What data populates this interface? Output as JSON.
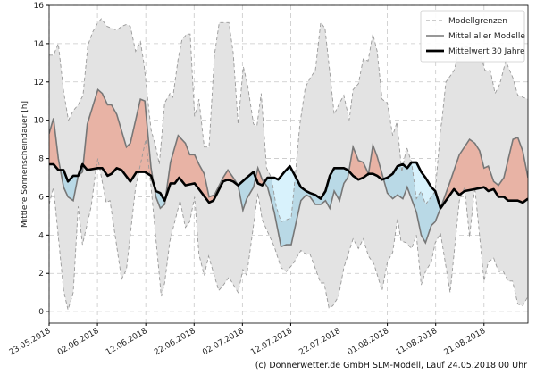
{
  "chart_data": {
    "type": "area",
    "title": "",
    "xlabel": "",
    "ylabel": "Mittlere Sonnenscheindauer [h]",
    "x_unit": "days since 23.05.2018",
    "xlim": [
      0,
      99.1
    ],
    "ylim": [
      -0.6,
      16
    ],
    "yticks": [
      0,
      2,
      4,
      6,
      8,
      10,
      12,
      14,
      16
    ],
    "xticks": [
      {
        "day": 0,
        "label": "23.05.2018"
      },
      {
        "day": 10,
        "label": "02.06.2018"
      },
      {
        "day": 20,
        "label": "12.06.2018"
      },
      {
        "day": 30,
        "label": "22.06.2018"
      },
      {
        "day": 40,
        "label": "02.07.2018"
      },
      {
        "day": 50,
        "label": "12.07.2018"
      },
      {
        "day": 60,
        "label": "22.07.2018"
      },
      {
        "day": 70,
        "label": "01.08.2018"
      },
      {
        "day": 80,
        "label": "11.08.2018"
      },
      {
        "day": 90,
        "label": "21.08.2018"
      }
    ],
    "grid": true,
    "legend_position": "top-right",
    "legend": [
      "Modellgrenzen",
      "Mittel aller Modelle",
      "Mittelwert 30 Jahre"
    ],
    "series": {
      "upper": [
        [
          0,
          13.4
        ],
        [
          0.9,
          13.4
        ],
        [
          1.9,
          14.0
        ],
        [
          3,
          11.5
        ],
        [
          4,
          10.0
        ],
        [
          5,
          10.5
        ],
        [
          6,
          10.8
        ],
        [
          7,
          11.3
        ],
        [
          8,
          13.9
        ],
        [
          9,
          14.6
        ],
        [
          10.1,
          15.1
        ],
        [
          10.8,
          15.3
        ],
        [
          12,
          14.9
        ],
        [
          13,
          14.8
        ],
        [
          14,
          14.7
        ],
        [
          15,
          14.9
        ],
        [
          16,
          15.0
        ],
        [
          16.8,
          14.9
        ],
        [
          17.9,
          13.6
        ],
        [
          18.9,
          14.1
        ],
        [
          19.6,
          13.0
        ],
        [
          21.1,
          9.5
        ],
        [
          22.1,
          8.6
        ],
        [
          22.8,
          7.7
        ],
        [
          23.9,
          10.9
        ],
        [
          25,
          11.4
        ],
        [
          25.6,
          11.2
        ],
        [
          26.7,
          13.2
        ],
        [
          27.5,
          14.2
        ],
        [
          28.5,
          14.5
        ],
        [
          29.2,
          14.5
        ],
        [
          30.1,
          10.2
        ],
        [
          31,
          11.1
        ],
        [
          32.1,
          8.6
        ],
        [
          33.1,
          8.6
        ],
        [
          34.2,
          13.4
        ],
        [
          35.2,
          15.1
        ],
        [
          36.3,
          15.1
        ],
        [
          37.2,
          15.1
        ],
        [
          38.1,
          13.5
        ],
        [
          39.1,
          9.8
        ],
        [
          40.2,
          12.8
        ],
        [
          41.1,
          11.8
        ],
        [
          42.3,
          9.8
        ],
        [
          43.0,
          9.7
        ],
        [
          43.9,
          11.4
        ],
        [
          45.0,
          7.5
        ],
        [
          46.0,
          7.0
        ],
        [
          47.0,
          5.5
        ],
        [
          48.0,
          4.7
        ],
        [
          49.1,
          4.8
        ],
        [
          50.1,
          4.9
        ],
        [
          50.9,
          7.0
        ],
        [
          51.9,
          9.8
        ],
        [
          53.0,
          11.7
        ],
        [
          54,
          12.2
        ],
        [
          55.1,
          12.6
        ],
        [
          56.2,
          15.1
        ],
        [
          57.1,
          14.8
        ],
        [
          58.1,
          12.5
        ],
        [
          59.0,
          10.3
        ],
        [
          60.1,
          10.9
        ],
        [
          61.0,
          11.3
        ],
        [
          62.1,
          10.0
        ],
        [
          62.9,
          11.6
        ],
        [
          64.0,
          11.9
        ],
        [
          65.0,
          13.2
        ],
        [
          66.0,
          13.1
        ],
        [
          67.0,
          14.5
        ],
        [
          67.9,
          13.6
        ],
        [
          68.9,
          11.1
        ],
        [
          70.0,
          10.9
        ],
        [
          71.1,
          9.2
        ],
        [
          72.0,
          9.9
        ],
        [
          73.0,
          7.3
        ],
        [
          74.0,
          8.6
        ],
        [
          75.0,
          7.8
        ],
        [
          76.0,
          5.9
        ],
        [
          77.0,
          6.3
        ],
        [
          77.9,
          5.6
        ],
        [
          79.1,
          6.0
        ],
        [
          79.9,
          6.3
        ],
        [
          81.0,
          9.5
        ],
        [
          81.3,
          10.0
        ],
        [
          82.1,
          12.0
        ],
        [
          83.0,
          12.3
        ],
        [
          83.8,
          12.6
        ],
        [
          84.9,
          13.6
        ],
        [
          85.6,
          13.9
        ],
        [
          86.7,
          13.8
        ],
        [
          88.1,
          13.5
        ],
        [
          88.4,
          13.4
        ],
        [
          89.1,
          13.6
        ],
        [
          90.2,
          12.6
        ],
        [
          91.3,
          12.6
        ],
        [
          92.3,
          11.4
        ],
        [
          93.3,
          11.9
        ],
        [
          94.5,
          13.1
        ],
        [
          96.0,
          12.2
        ],
        [
          97.0,
          11.3
        ],
        [
          99.1,
          11.1
        ]
      ],
      "lower": [
        [
          0,
          5.6
        ],
        [
          0.9,
          6.5
        ],
        [
          3,
          1.1
        ],
        [
          3.9,
          0.1
        ],
        [
          5,
          1.0
        ],
        [
          6,
          5.5
        ],
        [
          6.9,
          3.5
        ],
        [
          8.7,
          5.5
        ],
        [
          9.7,
          7.5
        ],
        [
          10.1,
          8.0
        ],
        [
          11.8,
          5.7
        ],
        [
          12.6,
          5.8
        ],
        [
          15,
          1.7
        ],
        [
          16,
          2.2
        ],
        [
          17.9,
          6.5
        ],
        [
          20,
          9.0
        ],
        [
          21.1,
          6.5
        ],
        [
          23.2,
          0.8
        ],
        [
          23.9,
          1.5
        ],
        [
          25,
          3.7
        ],
        [
          27.1,
          5.8
        ],
        [
          28.2,
          4.4
        ],
        [
          29.1,
          4.7
        ],
        [
          30.1,
          6.0
        ],
        [
          31,
          3.0
        ],
        [
          32.1,
          1.9
        ],
        [
          33,
          2.9
        ],
        [
          35.1,
          1.1
        ],
        [
          36.1,
          1.4
        ],
        [
          37.2,
          1.8
        ],
        [
          39.1,
          1.0
        ],
        [
          40.1,
          2.2
        ],
        [
          40.9,
          1.9
        ],
        [
          43.2,
          6.2
        ],
        [
          44.1,
          4.8
        ],
        [
          46.6,
          3.4
        ],
        [
          48,
          2.3
        ],
        [
          49.1,
          2.1
        ],
        [
          50.5,
          2.5
        ],
        [
          52.1,
          3.2
        ],
        [
          53.2,
          3.0
        ],
        [
          54,
          3.0
        ],
        [
          56.2,
          1.5
        ],
        [
          56.9,
          1.5
        ],
        [
          57.9,
          0.2
        ],
        [
          58.7,
          0.3
        ],
        [
          59.9,
          0.8
        ],
        [
          61,
          2.3
        ],
        [
          62.9,
          3.8
        ],
        [
          64,
          3.3
        ],
        [
          65,
          3.8
        ],
        [
          66.1,
          2.9
        ],
        [
          67.2,
          2.5
        ],
        [
          68.9,
          1.1
        ],
        [
          70,
          2.6
        ],
        [
          71.1,
          3.1
        ],
        [
          72.1,
          4.9
        ],
        [
          72.8,
          3.7
        ],
        [
          73.9,
          3.6
        ],
        [
          75,
          3.3
        ],
        [
          76,
          4.0
        ],
        [
          77,
          1.4
        ],
        [
          77.9,
          2.1
        ],
        [
          79.1,
          2.6
        ],
        [
          79.9,
          3.6
        ],
        [
          81,
          4.1
        ],
        [
          83,
          1.0
        ],
        [
          84.9,
          5.8
        ],
        [
          86,
          6.5
        ],
        [
          87,
          3.9
        ],
        [
          88.1,
          6.5
        ],
        [
          90,
          1.6
        ],
        [
          90.9,
          2.6
        ],
        [
          92,
          2.8
        ],
        [
          93,
          2.1
        ],
        [
          94,
          2.1
        ],
        [
          95,
          1.6
        ],
        [
          95.9,
          1.6
        ],
        [
          97,
          0.4
        ],
        [
          98,
          0.3
        ],
        [
          99.1,
          0.8
        ]
      ],
      "model_mean": [
        [
          0,
          9.3
        ],
        [
          0.9,
          10.1
        ],
        [
          1.9,
          8.0
        ],
        [
          3,
          6.5
        ],
        [
          3.9,
          6.0
        ],
        [
          5,
          5.8
        ],
        [
          6,
          7.1
        ],
        [
          6.9,
          7.3
        ],
        [
          7.9,
          9.8
        ],
        [
          10.1,
          11.6
        ],
        [
          11,
          11.4
        ],
        [
          12.1,
          10.8
        ],
        [
          12.9,
          10.8
        ],
        [
          14,
          10.3
        ],
        [
          16,
          8.6
        ],
        [
          16.8,
          8.8
        ],
        [
          18.9,
          11.1
        ],
        [
          19.8,
          11.0
        ],
        [
          21.1,
          7.5
        ],
        [
          22.1,
          6.0
        ],
        [
          23,
          5.4
        ],
        [
          23.9,
          5.6
        ],
        [
          25.1,
          7.8
        ],
        [
          26.7,
          9.2
        ],
        [
          28.2,
          8.8
        ],
        [
          29.1,
          8.2
        ],
        [
          30.1,
          8.2
        ],
        [
          31,
          7.7
        ],
        [
          32.1,
          7.2
        ],
        [
          33.1,
          6.0
        ],
        [
          34.2,
          6.1
        ],
        [
          36,
          7.0
        ],
        [
          37,
          7.4
        ],
        [
          38.1,
          7.0
        ],
        [
          39.1,
          6.6
        ],
        [
          40.1,
          5.3
        ],
        [
          40.9,
          5.9
        ],
        [
          42.3,
          6.5
        ],
        [
          43.2,
          7.5
        ],
        [
          44.1,
          6.9
        ],
        [
          45.2,
          6.5
        ],
        [
          46.6,
          5.2
        ],
        [
          48,
          3.4
        ],
        [
          49.1,
          3.5
        ],
        [
          50.1,
          3.5
        ],
        [
          52.1,
          5.8
        ],
        [
          53.2,
          6.1
        ],
        [
          54,
          6.0
        ],
        [
          55.1,
          5.6
        ],
        [
          56.2,
          5.6
        ],
        [
          57.2,
          5.8
        ],
        [
          58.1,
          5.4
        ],
        [
          59,
          6.3
        ],
        [
          60.1,
          5.8
        ],
        [
          61,
          6.7
        ],
        [
          61.8,
          7.0
        ],
        [
          62.9,
          8.6
        ],
        [
          64,
          7.9
        ],
        [
          65,
          7.8
        ],
        [
          66.1,
          7.2
        ],
        [
          67,
          8.7
        ],
        [
          67.9,
          8.1
        ],
        [
          68.9,
          7.2
        ],
        [
          70,
          6.2
        ],
        [
          71.1,
          5.9
        ],
        [
          72.1,
          6.1
        ],
        [
          73.2,
          5.9
        ],
        [
          74.1,
          6.5
        ],
        [
          76,
          5.2
        ],
        [
          77,
          4.0
        ],
        [
          77.9,
          3.6
        ],
        [
          79.1,
          4.5
        ],
        [
          79.9,
          4.7
        ],
        [
          81,
          5.4
        ],
        [
          83,
          6.8
        ],
        [
          84.9,
          8.2
        ],
        [
          87,
          9.0
        ],
        [
          88.1,
          8.8
        ],
        [
          89.1,
          8.4
        ],
        [
          90,
          7.5
        ],
        [
          90.9,
          7.6
        ],
        [
          92,
          6.8
        ],
        [
          93,
          6.6
        ],
        [
          94.1,
          7.0
        ],
        [
          96,
          9.0
        ],
        [
          97,
          9.1
        ],
        [
          98,
          8.4
        ],
        [
          99.1,
          7.0
        ]
      ],
      "climate_30y": [
        [
          0,
          7.7
        ],
        [
          0.9,
          7.7
        ],
        [
          1.9,
          7.4
        ],
        [
          3,
          7.4
        ],
        [
          3.9,
          6.8
        ],
        [
          5,
          7.1
        ],
        [
          6,
          7.1
        ],
        [
          6.9,
          7.7
        ],
        [
          7.9,
          7.4
        ],
        [
          10.1,
          7.5
        ],
        [
          11,
          7.5
        ],
        [
          12.1,
          7.1
        ],
        [
          12.9,
          7.2
        ],
        [
          14,
          7.5
        ],
        [
          15,
          7.4
        ],
        [
          16.8,
          6.8
        ],
        [
          18.1,
          7.3
        ],
        [
          19.8,
          7.3
        ],
        [
          21.1,
          7.1
        ],
        [
          22.1,
          6.3
        ],
        [
          23,
          6.2
        ],
        [
          23.9,
          5.8
        ],
        [
          25.1,
          6.7
        ],
        [
          26,
          6.7
        ],
        [
          26.9,
          7.0
        ],
        [
          28.2,
          6.6
        ],
        [
          30.1,
          6.7
        ],
        [
          31,
          6.4
        ],
        [
          33.1,
          5.7
        ],
        [
          34,
          5.8
        ],
        [
          36,
          6.8
        ],
        [
          37,
          6.9
        ],
        [
          38.1,
          6.8
        ],
        [
          39.1,
          6.6
        ],
        [
          40.9,
          7.0
        ],
        [
          42.3,
          7.3
        ],
        [
          43.2,
          6.7
        ],
        [
          44.1,
          6.6
        ],
        [
          45.2,
          7.0
        ],
        [
          46.6,
          7.0
        ],
        [
          47.4,
          6.9
        ],
        [
          48.7,
          7.3
        ],
        [
          49.8,
          7.6
        ],
        [
          50.9,
          7.1
        ],
        [
          52.1,
          6.5
        ],
        [
          53.2,
          6.3
        ],
        [
          54,
          6.2
        ],
        [
          55.1,
          6.1
        ],
        [
          56.2,
          5.9
        ],
        [
          57.2,
          6.3
        ],
        [
          58.1,
          7.1
        ],
        [
          59,
          7.5
        ],
        [
          60.1,
          7.5
        ],
        [
          61,
          7.5
        ],
        [
          61.8,
          7.4
        ],
        [
          62.9,
          7.1
        ],
        [
          64,
          6.9
        ],
        [
          65,
          7.0
        ],
        [
          66.1,
          7.2
        ],
        [
          67,
          7.2
        ],
        [
          67.9,
          7.1
        ],
        [
          68.9,
          6.9
        ],
        [
          70,
          7.0
        ],
        [
          71.1,
          7.2
        ],
        [
          72.1,
          7.6
        ],
        [
          73.2,
          7.7
        ],
        [
          74.1,
          7.5
        ],
        [
          75,
          7.8
        ],
        [
          76,
          7.8
        ],
        [
          77,
          7.3
        ],
        [
          77.9,
          7.0
        ],
        [
          79.1,
          6.5
        ],
        [
          79.9,
          6.3
        ],
        [
          81,
          5.4
        ],
        [
          82.1,
          5.8
        ],
        [
          83.8,
          6.4
        ],
        [
          84.9,
          6.1
        ],
        [
          86,
          6.3
        ],
        [
          88.1,
          6.4
        ],
        [
          90,
          6.5
        ],
        [
          90.9,
          6.3
        ],
        [
          92,
          6.4
        ],
        [
          93,
          6.0
        ],
        [
          94.1,
          6.0
        ],
        [
          95,
          5.8
        ],
        [
          97,
          5.8
        ],
        [
          98,
          5.7
        ],
        [
          99.1,
          5.9
        ]
      ]
    },
    "colors": {
      "band": "#e3e3e3",
      "above_climate": "#e8b3a5",
      "below_climate": "#b9d9e6",
      "upper_below_climate": "#d8f2fc",
      "model_mean_line": "#777777",
      "climate_line": "#000000",
      "bounds_line": "#999999"
    }
  },
  "footer": "(c) Donnerwetter.de GmbH SLM-Modell, Lauf 24.05.2018 00 Uhr"
}
